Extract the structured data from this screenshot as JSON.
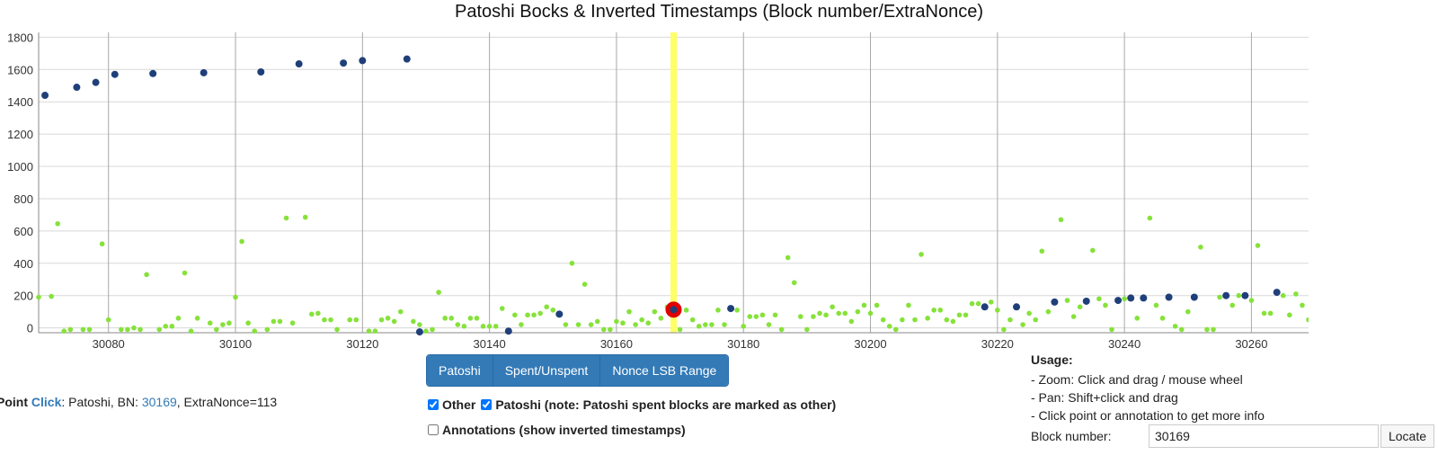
{
  "title": "Patoshi Bocks & Inverted Timestamps (Block number/ExtraNonce)",
  "colors": {
    "patoshi": "#1f3f7a",
    "other": "#86e23a",
    "highlight_band": "#ffff66",
    "selected_ring": "#e00000",
    "grid": "#d8d8d8",
    "vgrid": "#a8a8a8",
    "button_bg": "#337ab7"
  },
  "chart_data": {
    "type": "scatter",
    "title": "Patoshi Bocks & Inverted Timestamps (Block number/ExtraNonce)",
    "xlabel": "",
    "ylabel": "",
    "xlim": [
      30069,
      30269
    ],
    "ylim": [
      -30,
      1830
    ],
    "x_ticks": [
      30080,
      30100,
      30120,
      30140,
      30160,
      30180,
      30200,
      30220,
      30240,
      30260
    ],
    "y_ticks": [
      0,
      200,
      400,
      600,
      800,
      1000,
      1200,
      1400,
      1600,
      1800
    ],
    "grid": true,
    "highlight_x": 30169,
    "selected_point": {
      "x": 30169,
      "y": 113
    },
    "series": [
      {
        "name": "Patoshi",
        "points": [
          [
            30070,
            1440
          ],
          [
            30075,
            1490
          ],
          [
            30078,
            1520
          ],
          [
            30081,
            1570
          ],
          [
            30087,
            1575
          ],
          [
            30095,
            1580
          ],
          [
            30104,
            1585
          ],
          [
            30110,
            1635
          ],
          [
            30117,
            1640
          ],
          [
            30120,
            1655
          ],
          [
            30127,
            1665
          ],
          [
            30129,
            -25
          ],
          [
            30143,
            -20
          ],
          [
            30151,
            85
          ],
          [
            30169,
            113
          ],
          [
            30178,
            120
          ],
          [
            30218,
            130
          ],
          [
            30223,
            130
          ],
          [
            30229,
            160
          ],
          [
            30234,
            165
          ],
          [
            30239,
            170
          ],
          [
            30241,
            185
          ],
          [
            30243,
            185
          ],
          [
            30247,
            190
          ],
          [
            30251,
            190
          ],
          [
            30256,
            200
          ],
          [
            30259,
            200
          ],
          [
            30264,
            220
          ]
        ]
      },
      {
        "name": "Other",
        "points": [
          [
            30069,
            190
          ],
          [
            30071,
            195
          ],
          [
            30072,
            645
          ],
          [
            30073,
            -20
          ],
          [
            30074,
            -10
          ],
          [
            30076,
            -10
          ],
          [
            30077,
            -10
          ],
          [
            30079,
            520
          ],
          [
            30080,
            50
          ],
          [
            30082,
            -10
          ],
          [
            30083,
            -10
          ],
          [
            30084,
            0
          ],
          [
            30085,
            -10
          ],
          [
            30086,
            330
          ],
          [
            30088,
            -10
          ],
          [
            30089,
            10
          ],
          [
            30090,
            10
          ],
          [
            30091,
            60
          ],
          [
            30092,
            340
          ],
          [
            30093,
            -20
          ],
          [
            30094,
            60
          ],
          [
            30096,
            30
          ],
          [
            30097,
            -10
          ],
          [
            30098,
            20
          ],
          [
            30099,
            30
          ],
          [
            30100,
            190
          ],
          [
            30101,
            535
          ],
          [
            30102,
            30
          ],
          [
            30103,
            -20
          ],
          [
            30105,
            -10
          ],
          [
            30106,
            40
          ],
          [
            30107,
            40
          ],
          [
            30108,
            680
          ],
          [
            30109,
            30
          ],
          [
            30111,
            685
          ],
          [
            30112,
            85
          ],
          [
            30113,
            90
          ],
          [
            30114,
            50
          ],
          [
            30115,
            50
          ],
          [
            30116,
            -10
          ],
          [
            30118,
            50
          ],
          [
            30119,
            50
          ],
          [
            30121,
            -20
          ],
          [
            30122,
            -20
          ],
          [
            30123,
            50
          ],
          [
            30124,
            60
          ],
          [
            30125,
            40
          ],
          [
            30126,
            100
          ],
          [
            30128,
            40
          ],
          [
            30129,
            20
          ],
          [
            30130,
            -20
          ],
          [
            30131,
            -10
          ],
          [
            30132,
            220
          ],
          [
            30133,
            60
          ],
          [
            30134,
            60
          ],
          [
            30135,
            20
          ],
          [
            30136,
            10
          ],
          [
            30137,
            60
          ],
          [
            30138,
            60
          ],
          [
            30139,
            10
          ],
          [
            30140,
            10
          ],
          [
            30141,
            10
          ],
          [
            30142,
            120
          ],
          [
            30144,
            80
          ],
          [
            30145,
            20
          ],
          [
            30146,
            80
          ],
          [
            30147,
            80
          ],
          [
            30148,
            90
          ],
          [
            30149,
            130
          ],
          [
            30150,
            110
          ],
          [
            30152,
            20
          ],
          [
            30153,
            400
          ],
          [
            30154,
            20
          ],
          [
            30155,
            270
          ],
          [
            30156,
            20
          ],
          [
            30157,
            40
          ],
          [
            30158,
            -10
          ],
          [
            30159,
            -10
          ],
          [
            30160,
            40
          ],
          [
            30161,
            30
          ],
          [
            30162,
            100
          ],
          [
            30163,
            20
          ],
          [
            30164,
            50
          ],
          [
            30165,
            30
          ],
          [
            30166,
            100
          ],
          [
            30167,
            60
          ],
          [
            30168,
            130
          ],
          [
            30170,
            -10
          ],
          [
            30171,
            110
          ],
          [
            30172,
            50
          ],
          [
            30173,
            10
          ],
          [
            30174,
            20
          ],
          [
            30175,
            20
          ],
          [
            30176,
            110
          ],
          [
            30177,
            20
          ],
          [
            30179,
            110
          ],
          [
            30180,
            10
          ],
          [
            30181,
            70
          ],
          [
            30182,
            70
          ],
          [
            30183,
            80
          ],
          [
            30184,
            20
          ],
          [
            30185,
            80
          ],
          [
            30186,
            -10
          ],
          [
            30187,
            435
          ],
          [
            30188,
            280
          ],
          [
            30189,
            70
          ],
          [
            30190,
            -10
          ],
          [
            30191,
            70
          ],
          [
            30192,
            90
          ],
          [
            30193,
            80
          ],
          [
            30194,
            130
          ],
          [
            30195,
            90
          ],
          [
            30196,
            90
          ],
          [
            30197,
            40
          ],
          [
            30198,
            100
          ],
          [
            30199,
            140
          ],
          [
            30200,
            90
          ],
          [
            30201,
            140
          ],
          [
            30202,
            50
          ],
          [
            30203,
            10
          ],
          [
            30204,
            -10
          ],
          [
            30205,
            50
          ],
          [
            30206,
            140
          ],
          [
            30207,
            50
          ],
          [
            30208,
            455
          ],
          [
            30209,
            60
          ],
          [
            30210,
            110
          ],
          [
            30211,
            110
          ],
          [
            30212,
            50
          ],
          [
            30213,
            40
          ],
          [
            30214,
            80
          ],
          [
            30215,
            80
          ],
          [
            30216,
            150
          ],
          [
            30217,
            150
          ],
          [
            30219,
            160
          ],
          [
            30220,
            110
          ],
          [
            30221,
            -10
          ],
          [
            30222,
            50
          ],
          [
            30224,
            20
          ],
          [
            30225,
            90
          ],
          [
            30226,
            50
          ],
          [
            30227,
            475
          ],
          [
            30228,
            100
          ],
          [
            30230,
            670
          ],
          [
            30231,
            170
          ],
          [
            30232,
            70
          ],
          [
            30233,
            130
          ],
          [
            30235,
            480
          ],
          [
            30236,
            180
          ],
          [
            30237,
            140
          ],
          [
            30238,
            -10
          ],
          [
            30240,
            180
          ],
          [
            30242,
            60
          ],
          [
            30244,
            680
          ],
          [
            30245,
            140
          ],
          [
            30246,
            60
          ],
          [
            30248,
            10
          ],
          [
            30249,
            -10
          ],
          [
            30250,
            100
          ],
          [
            30252,
            500
          ],
          [
            30253,
            -10
          ],
          [
            30254,
            -10
          ],
          [
            30255,
            190
          ],
          [
            30257,
            140
          ],
          [
            30258,
            200
          ],
          [
            30260,
            170
          ],
          [
            30261,
            510
          ],
          [
            30262,
            90
          ],
          [
            30263,
            90
          ],
          [
            30265,
            200
          ],
          [
            30266,
            80
          ],
          [
            30267,
            210
          ],
          [
            30268,
            140
          ],
          [
            30269,
            50
          ]
        ]
      }
    ]
  },
  "buttons": {
    "patoshi": "Patoshi",
    "spent": "Spent/Unspent",
    "nonce": "Nonce LSB Range"
  },
  "point_info": {
    "prefix": "Point",
    "click": "Click",
    "text1": ": Patoshi, BN: ",
    "bn": "30169",
    "text2": ", ExtraNonce=113"
  },
  "options": {
    "other_label": "Other",
    "other_checked": true,
    "patoshi_label": "Patoshi (note: Patoshi spent blocks are marked as other)",
    "patoshi_checked": true,
    "annotations_label": "Annotations (show inverted timestamps)",
    "annotations_checked": false
  },
  "usage": {
    "title": "Usage:",
    "lines": [
      "- Zoom: Click and drag / mouse wheel",
      "- Pan: Shift+click and drag",
      "- Click point or annotation to get more info"
    ]
  },
  "block_search": {
    "label": "Block number:",
    "value": "30169",
    "button": "Locate"
  }
}
